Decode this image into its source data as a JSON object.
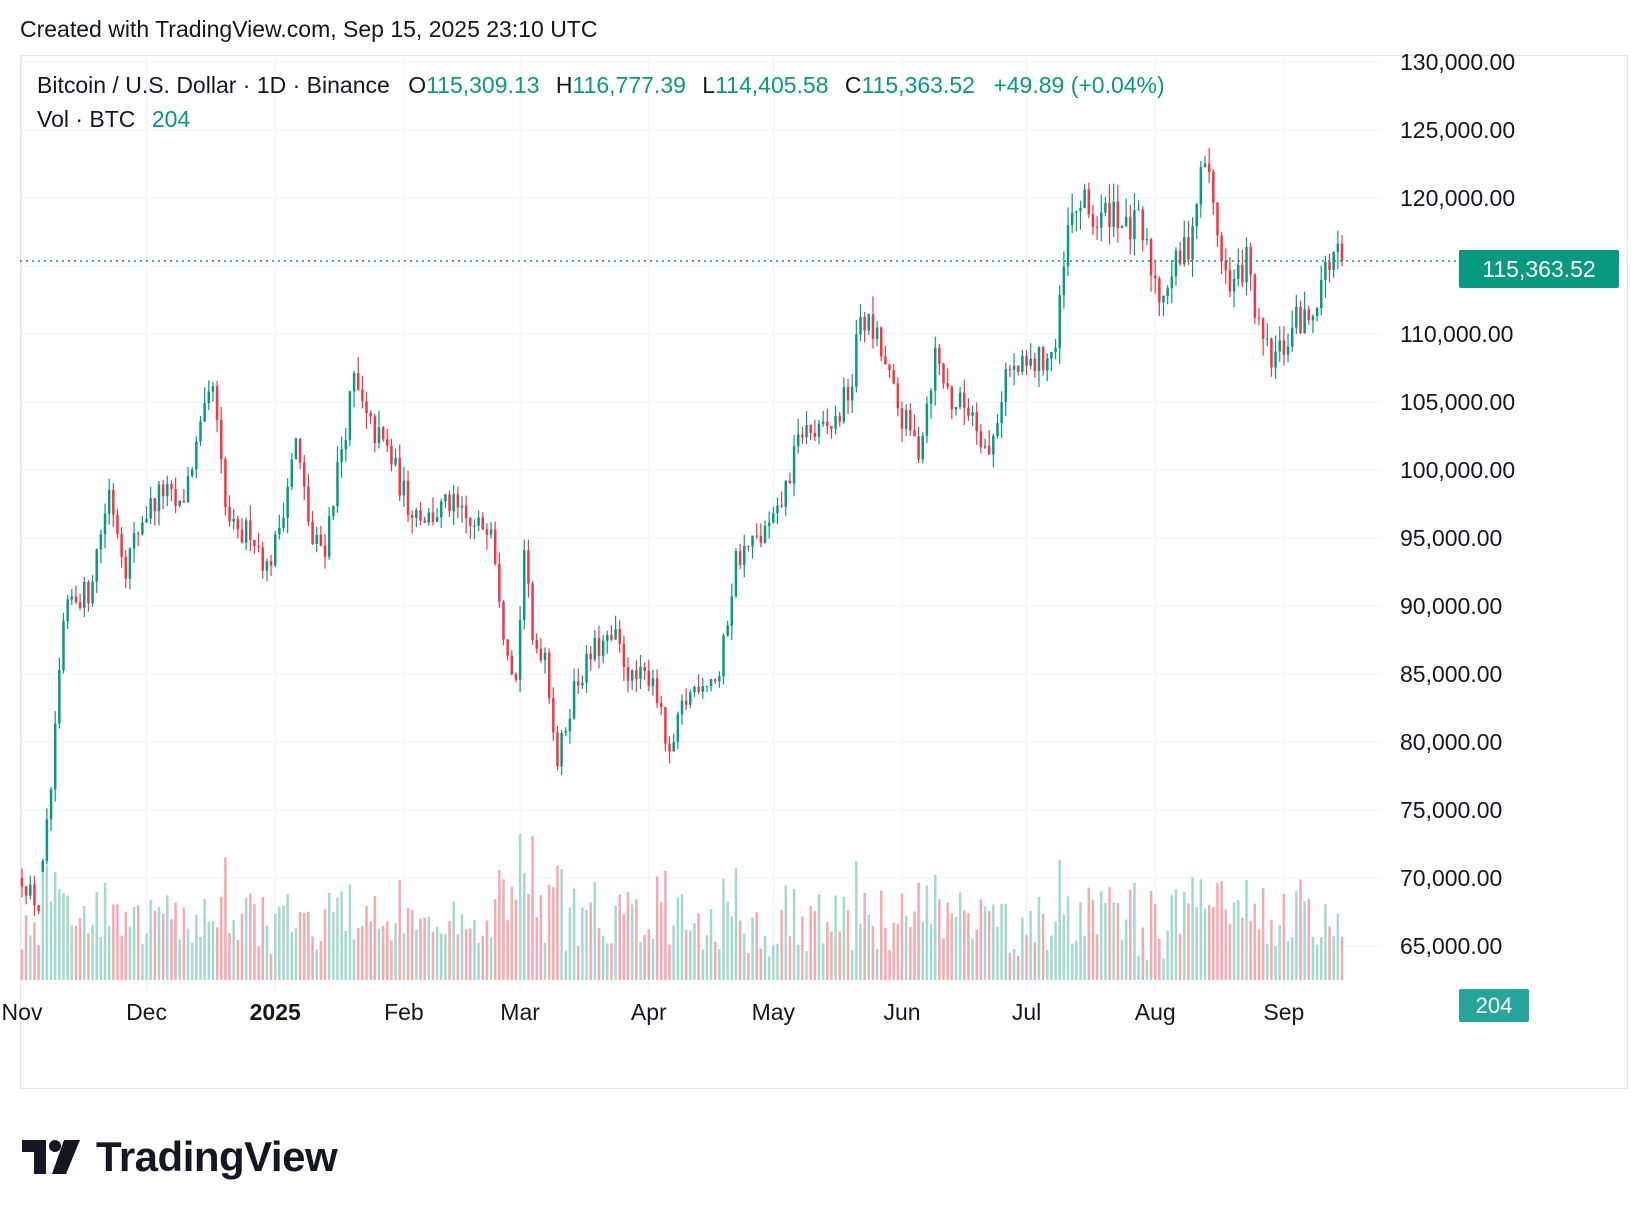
{
  "caption": "Created with TradingView.com, Sep 15, 2025 23:10 UTC",
  "legend": {
    "symbol": "Bitcoin / U.S. Dollar · 1D · Binance",
    "o_label": "O",
    "o_value": "115,309.13",
    "h_label": "H",
    "h_value": "116,777.39",
    "l_label": "L",
    "l_value": "114,405.58",
    "c_label": "C",
    "c_value": "115,363.52",
    "change": "+49.89 (+0.04%)",
    "vol_label": "Vol · BTC",
    "vol_value": "204"
  },
  "price_badge": "115,363.52",
  "vol_badge": "204",
  "brand": "TradingView",
  "colors": {
    "up": "#089981",
    "down": "#f23645",
    "vol_up": "#a3d9cf",
    "vol_down": "#f7a9b0",
    "grid": "#f0f3fa",
    "axis_text": "#131722"
  },
  "chart_data": {
    "type": "candlestick",
    "interval": "1D",
    "y_axis": {
      "min": 62500,
      "max": 130000,
      "ticks": [
        130000,
        125000,
        120000,
        115000,
        110000,
        105000,
        100000,
        95000,
        90000,
        85000,
        80000,
        75000,
        70000,
        65000
      ],
      "tick_labels": [
        "130,000.00",
        "125,000.00",
        "120,000.00",
        "",
        "110,000.00",
        "105,000.00",
        "100,000.00",
        "95,000.00",
        "90,000.00",
        "85,000.00",
        "80,000.00",
        "75,000.00",
        "70,000.00",
        "65,000.00"
      ]
    },
    "x_axis": {
      "labels": [
        {
          "label": "Nov",
          "date": "2024-11-01"
        },
        {
          "label": "Dec",
          "date": "2024-12-01"
        },
        {
          "label": "2025",
          "date": "2025-01-01",
          "bold": true
        },
        {
          "label": "Feb",
          "date": "2025-02-01"
        },
        {
          "label": "Mar",
          "date": "2025-03-01"
        },
        {
          "label": "Apr",
          "date": "2025-04-01"
        },
        {
          "label": "May",
          "date": "2025-05-01"
        },
        {
          "label": "Jun",
          "date": "2025-06-01"
        },
        {
          "label": "Jul",
          "date": "2025-07-01"
        },
        {
          "label": "Aug",
          "date": "2025-08-01"
        },
        {
          "label": "Sep",
          "date": "2025-09-01"
        }
      ],
      "start": "2024-11-01",
      "end": "2025-09-15"
    },
    "last_price": 115363.52,
    "close_path": [
      [
        "2024-11-01",
        70000
      ],
      [
        "2024-11-05",
        67800
      ],
      [
        "2024-11-08",
        76500
      ],
      [
        "2024-11-11",
        88500
      ],
      [
        "2024-11-13",
        90500
      ],
      [
        "2024-11-17",
        91000
      ],
      [
        "2024-11-22",
        98500
      ],
      [
        "2024-11-26",
        93000
      ],
      [
        "2024-11-30",
        96500
      ],
      [
        "2024-12-05",
        98500
      ],
      [
        "2024-12-09",
        97000
      ],
      [
        "2024-12-12",
        100500
      ],
      [
        "2024-12-17",
        106000
      ],
      [
        "2024-12-20",
        97000
      ],
      [
        "2024-12-23",
        94800
      ],
      [
        "2024-12-26",
        95800
      ],
      [
        "2024-12-30",
        92800
      ],
      [
        "2025-01-01",
        94500
      ],
      [
        "2025-01-06",
        102000
      ],
      [
        "2025-01-10",
        94500
      ],
      [
        "2025-01-13",
        94500
      ],
      [
        "2025-01-16",
        100000
      ],
      [
        "2025-01-20",
        106500
      ],
      [
        "2025-01-23",
        103500
      ],
      [
        "2025-01-28",
        101500
      ],
      [
        "2025-02-02",
        97500
      ],
      [
        "2025-02-07",
        96500
      ],
      [
        "2025-02-12",
        97500
      ],
      [
        "2025-02-18",
        95500
      ],
      [
        "2025-02-22",
        96500
      ],
      [
        "2025-02-25",
        88500
      ],
      [
        "2025-02-28",
        84500
      ],
      [
        "2025-03-02",
        94200
      ],
      [
        "2025-03-04",
        87200
      ],
      [
        "2025-03-07",
        86700
      ],
      [
        "2025-03-10",
        78500
      ],
      [
        "2025-03-14",
        84000
      ],
      [
        "2025-03-19",
        86800
      ],
      [
        "2025-03-24",
        87500
      ],
      [
        "2025-03-28",
        84500
      ],
      [
        "2025-04-02",
        85000
      ],
      [
        "2025-04-06",
        78500
      ],
      [
        "2025-04-09",
        82500
      ],
      [
        "2025-04-13",
        84500
      ],
      [
        "2025-04-18",
        84800
      ],
      [
        "2025-04-22",
        93500
      ],
      [
        "2025-04-28",
        95000
      ],
      [
        "2025-05-02",
        96500
      ],
      [
        "2025-05-08",
        103000
      ],
      [
        "2025-05-12",
        102500
      ],
      [
        "2025-05-16",
        103500
      ],
      [
        "2025-05-20",
        106500
      ],
      [
        "2025-05-22",
        111500
      ],
      [
        "2025-05-26",
        109500
      ],
      [
        "2025-05-31",
        104500
      ],
      [
        "2025-06-05",
        101500
      ],
      [
        "2025-06-09",
        108500
      ],
      [
        "2025-06-13",
        105000
      ],
      [
        "2025-06-18",
        104500
      ],
      [
        "2025-06-22",
        100900
      ],
      [
        "2025-06-26",
        107200
      ],
      [
        "2025-06-30",
        107300
      ],
      [
        "2025-07-04",
        108000
      ],
      [
        "2025-07-08",
        108900
      ],
      [
        "2025-07-11",
        117500
      ],
      [
        "2025-07-14",
        119800
      ],
      [
        "2025-07-18",
        118000
      ],
      [
        "2025-07-22",
        119500
      ],
      [
        "2025-07-25",
        117500
      ],
      [
        "2025-07-28",
        118000
      ],
      [
        "2025-08-02",
        113000
      ],
      [
        "2025-08-06",
        115000
      ],
      [
        "2025-08-09",
        116700
      ],
      [
        "2025-08-13",
        123000
      ],
      [
        "2025-08-16",
        117500
      ],
      [
        "2025-08-19",
        113000
      ],
      [
        "2025-08-23",
        115500
      ],
      [
        "2025-08-26",
        110000
      ],
      [
        "2025-08-29",
        108000
      ],
      [
        "2025-09-01",
        109000
      ],
      [
        "2025-09-04",
        111000
      ],
      [
        "2025-09-07",
        111000
      ],
      [
        "2025-09-10",
        114000
      ],
      [
        "2025-09-13",
        115900
      ],
      [
        "2025-09-15",
        115363.52
      ]
    ],
    "volume_axis": {
      "max": 70000
    }
  }
}
